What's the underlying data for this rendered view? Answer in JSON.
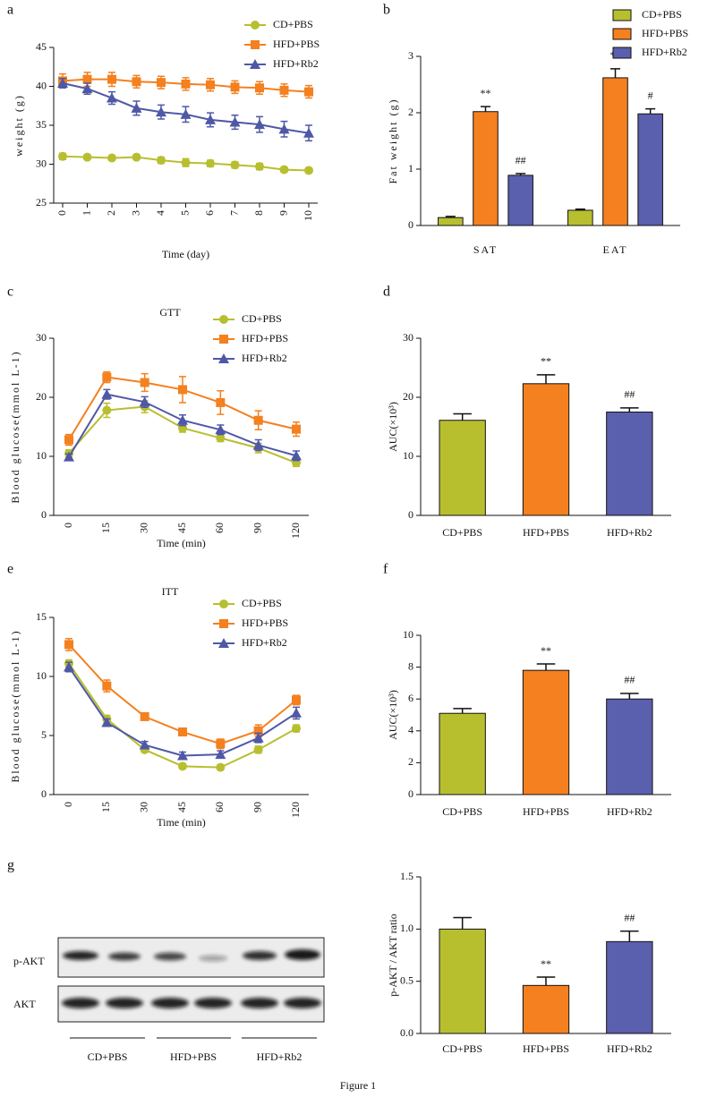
{
  "chart_data": [
    {
      "panel": "a",
      "type": "line",
      "ylabel": "weight (g)",
      "xlabel": "Time (day)",
      "x": [
        0,
        1,
        2,
        3,
        4,
        5,
        6,
        7,
        8,
        9,
        10
      ],
      "xlim": [
        0,
        10
      ],
      "xticks": [
        0,
        1,
        2,
        3,
        4,
        5,
        6,
        7,
        8,
        9,
        10
      ],
      "ylim": [
        25,
        45
      ],
      "yticks": [
        25,
        30,
        35,
        40,
        45
      ],
      "legend": true,
      "series": [
        {
          "name": "CD+PBS",
          "color": "#b8bf2f",
          "marker": "o",
          "values": [
            31.0,
            30.9,
            30.8,
            30.9,
            30.5,
            30.2,
            30.1,
            29.9,
            29.7,
            29.3,
            29.2
          ],
          "errors": [
            0.4,
            0.3,
            0.3,
            0.3,
            0.4,
            0.5,
            0.4,
            0.4,
            0.4,
            0.3,
            0.3
          ]
        },
        {
          "name": "HFD+PBS",
          "color": "#f4801f",
          "marker": "s",
          "values": [
            40.7,
            40.9,
            40.9,
            40.6,
            40.5,
            40.3,
            40.2,
            39.9,
            39.8,
            39.5,
            39.3
          ],
          "errors": [
            0.9,
            0.9,
            0.9,
            0.8,
            0.8,
            0.8,
            0.8,
            0.8,
            0.8,
            0.8,
            0.8
          ]
        },
        {
          "name": "HFD+Rb2",
          "color": "#4f58a6",
          "marker": "^",
          "values": [
            40.4,
            39.7,
            38.5,
            37.2,
            36.7,
            36.4,
            35.7,
            35.4,
            35.1,
            34.5,
            34.0
          ],
          "errors": [
            0.6,
            0.7,
            0.8,
            0.9,
            0.9,
            1.0,
            0.9,
            0.9,
            1.0,
            1.0,
            1.0
          ]
        }
      ]
    },
    {
      "panel": "b",
      "type": "bar",
      "ylabel": "Fat weight (g)",
      "categories": [
        "SAT",
        "EAT"
      ],
      "ylim": [
        0,
        3
      ],
      "yticks": [
        0,
        1,
        2,
        3
      ],
      "legend": true,
      "series": [
        {
          "name": "CD+PBS",
          "color": "#b8bf2f",
          "values": [
            0.14,
            0.27
          ],
          "errors": [
            0.02,
            0.02
          ],
          "significance": [
            null,
            null
          ]
        },
        {
          "name": "HFD+PBS",
          "color": "#f4801f",
          "values": [
            2.02,
            2.62
          ],
          "errors": [
            0.09,
            0.16
          ],
          "significance": [
            "**",
            "**"
          ]
        },
        {
          "name": "HFD+Rb2",
          "color": "#5a5fae",
          "values": [
            0.89,
            1.98
          ],
          "errors": [
            0.03,
            0.09
          ],
          "significance": [
            "##",
            "#"
          ]
        }
      ]
    },
    {
      "panel": "c",
      "type": "line",
      "title": "GTT",
      "ylabel": "Blood glucose(mmol L-1)",
      "xlabel": "Time (min)",
      "categories": [
        "0",
        "15",
        "30",
        "45",
        "60",
        "90",
        "120"
      ],
      "ylim": [
        0,
        30
      ],
      "yticks": [
        0,
        10,
        20,
        30
      ],
      "legend": true,
      "series": [
        {
          "name": "CD+PBS",
          "color": "#b8bf2f",
          "marker": "o",
          "values": [
            10.5,
            17.8,
            18.4,
            14.8,
            13.1,
            11.4,
            8.9
          ],
          "errors": [
            0.6,
            1.2,
            1.0,
            0.7,
            0.6,
            0.8,
            0.6
          ]
        },
        {
          "name": "HFD+PBS",
          "color": "#f4801f",
          "marker": "s",
          "values": [
            12.8,
            23.4,
            22.5,
            21.3,
            19.1,
            16.1,
            14.6
          ],
          "errors": [
            0.9,
            0.9,
            1.5,
            2.2,
            2.0,
            1.6,
            1.2
          ]
        },
        {
          "name": "HFD+Rb2",
          "color": "#4f58a6",
          "marker": "^",
          "values": [
            9.9,
            20.5,
            19.2,
            16.1,
            14.5,
            11.9,
            10.1
          ],
          "errors": [
            0.5,
            0.8,
            0.9,
            0.9,
            0.8,
            0.9,
            0.8
          ]
        }
      ]
    },
    {
      "panel": "d",
      "type": "bar",
      "ylabel": "AUC(×10³)",
      "categories": [
        "CD+PBS",
        "HFD+PBS",
        "HFD+Rb2"
      ],
      "ylim": [
        0,
        30
      ],
      "yticks": [
        0,
        10,
        20,
        30
      ],
      "legend": false,
      "values": [
        16.1,
        22.3,
        17.5
      ],
      "errors": [
        1.1,
        1.5,
        0.7
      ],
      "colors": [
        "#b8bf2f",
        "#f4801f",
        "#5a5fae"
      ],
      "significance": [
        null,
        "**",
        "##"
      ]
    },
    {
      "panel": "e",
      "type": "line",
      "title": "ITT",
      "ylabel": "Blood glucose(mmol L-1)",
      "xlabel": "Time (min)",
      "categories": [
        "0",
        "15",
        "30",
        "45",
        "60",
        "90",
        "120"
      ],
      "ylim": [
        0,
        15
      ],
      "yticks": [
        0,
        5,
        10,
        15
      ],
      "legend": true,
      "series": [
        {
          "name": "CD+PBS",
          "color": "#b8bf2f",
          "marker": "o",
          "values": [
            11.1,
            6.4,
            3.8,
            2.4,
            2.3,
            3.8,
            5.6
          ],
          "errors": [
            0.3,
            0.3,
            0.2,
            0.2,
            0.2,
            0.3,
            0.3
          ]
        },
        {
          "name": "HFD+PBS",
          "color": "#f4801f",
          "marker": "s",
          "values": [
            12.7,
            9.2,
            6.6,
            5.3,
            4.3,
            5.4,
            8.0
          ],
          "errors": [
            0.5,
            0.5,
            0.3,
            0.3,
            0.4,
            0.5,
            0.4
          ]
        },
        {
          "name": "HFD+Rb2",
          "color": "#4f58a6",
          "marker": "^",
          "values": [
            10.8,
            6.1,
            4.2,
            3.3,
            3.4,
            4.8,
            6.9
          ],
          "errors": [
            0.4,
            0.3,
            0.3,
            0.3,
            0.3,
            0.4,
            0.5
          ]
        }
      ]
    },
    {
      "panel": "f",
      "type": "bar",
      "ylabel": "AUC(×10³)",
      "categories": [
        "CD+PBS",
        "HFD+PBS",
        "HFD+Rb2"
      ],
      "ylim": [
        0,
        10
      ],
      "yticks": [
        0,
        2,
        4,
        6,
        8,
        10
      ],
      "legend": false,
      "values": [
        5.1,
        7.8,
        6.0
      ],
      "errors": [
        0.3,
        0.4,
        0.35
      ],
      "colors": [
        "#b8bf2f",
        "#f4801f",
        "#5a5fae"
      ],
      "significance": [
        null,
        "**",
        "##"
      ]
    },
    {
      "panel": "g",
      "type": "bar",
      "ylabel": "p-AKT / AKT ratio",
      "categories": [
        "CD+PBS",
        "HFD+PBS",
        "HFD+Rb2"
      ],
      "ylim": [
        0,
        1.5
      ],
      "yticks": [
        {
          "value": 0,
          "label": "0.0"
        },
        0.5,
        {
          "value": 1,
          "label": "1.0"
        },
        1.5
      ],
      "legend": false,
      "values": [
        1.0,
        0.46,
        0.88
      ],
      "errors": [
        0.11,
        0.08,
        0.1
      ],
      "colors": [
        "#b8bf2f",
        "#f4801f",
        "#5a5fae"
      ],
      "significance": [
        null,
        "**",
        "##"
      ]
    }
  ],
  "blot": {
    "rows": [
      "p-AKT",
      "AKT"
    ],
    "groups": [
      "CD+PBS",
      "HFD+PBS",
      "HFD+Rb2"
    ]
  },
  "caption": "Figure 1"
}
